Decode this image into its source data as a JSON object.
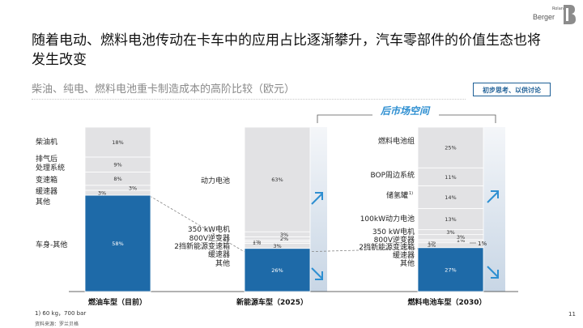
{
  "header": {
    "title": "随着电动、燃料电池传动在卡车中的应用占比逐渐攀升，汽车零部件的价值生态也将发生改变",
    "subtitle": "柴油、纯电、燃料电池重卡制造成本的高阶比较（欧元）",
    "badge": "初步思考、以供讨论",
    "logo_roland": "Roland",
    "logo_berger": "Berger"
  },
  "aftermarket_label": "后市场空间",
  "footer": {
    "footnote": "1) 60 kg，700 bar",
    "source": "资料来源：罗兰贝格"
  },
  "page_number": "11",
  "colors": {
    "highlight": "#1e6aa8",
    "segment": "#e2e2e4",
    "accent": "#2e8fd1",
    "arrow_panel_top": "#f4f6f9",
    "arrow_panel_bottom": "#c8d6e5"
  },
  "chart_data": {
    "type": "bar",
    "stacked": true,
    "categories": [
      "燃油车型（目前）",
      "新能源车型（2025）",
      "燃料电池车型（2030）"
    ],
    "bars": [
      {
        "category": "燃油车型（目前）",
        "segments": [
          {
            "label": "车身-其他",
            "value": 58,
            "display": "58%",
            "highlight": true
          },
          {
            "label": "其他",
            "value": 3,
            "display": "3%"
          },
          {
            "label": "缓速器",
            "value": 3,
            "display": "3%"
          },
          {
            "label": "变速箱",
            "value": 8,
            "display": "8%"
          },
          {
            "label": "排气后处理系统",
            "value": 9,
            "display": "9%"
          },
          {
            "label": "柴油机",
            "value": 18,
            "display": "18%"
          }
        ]
      },
      {
        "category": "新能源车型（2025）",
        "segments": [
          {
            "label": "其他",
            "value": 26,
            "display": "26%",
            "highlight": true
          },
          {
            "label": "缓速器",
            "value": 3,
            "display": "3%"
          },
          {
            "label": "2挡新能源变速箱",
            "value": 1,
            "display": "1%"
          },
          {
            "label": "800V逆变器",
            "value": 1,
            "display": "1%"
          },
          {
            "label": "800V逆变器",
            "value": 2,
            "display": "2%"
          },
          {
            "label": "350 kW电机",
            "value": 3,
            "display": "3%"
          },
          {
            "label": "动力电池",
            "value": 63,
            "display": "63%"
          }
        ]
      },
      {
        "category": "燃料电池车型（2030）",
        "segments": [
          {
            "label": "其他",
            "value": 27,
            "display": "27%",
            "highlight": true
          },
          {
            "label": "缓速器",
            "value": 3,
            "display": "3%"
          },
          {
            "label": "2挡新能源变速箱",
            "value": 1,
            "display": "1%"
          },
          {
            "label": "800V逆变器",
            "value": 1,
            "display": "1%"
          },
          {
            "label": "800V逆变器",
            "value": 3,
            "display": "3%"
          },
          {
            "label": "350 kW电机",
            "value": 3,
            "display": "3%"
          },
          {
            "label": "100kW动力电池",
            "value": 13,
            "display": "13%"
          },
          {
            "label": "储氢罐¹⁾",
            "value": 14,
            "display": "14%"
          },
          {
            "label": "BOP周边系统",
            "value": 11,
            "display": "11%"
          },
          {
            "label": "燃料电池组",
            "value": 25,
            "display": "25%"
          }
        ]
      }
    ],
    "left_labels": {
      "bar1": [
        "柴油机",
        "排气后",
        "处理系统",
        "变速箱",
        "缓速器",
        "其他",
        "车身-其他"
      ],
      "bar2": [
        "动力电池",
        "350 kW电机",
        "800V逆变器",
        "2挡新能源变速箱",
        "缓速器",
        "其他"
      ],
      "bar3": [
        "燃料电池组",
        "BOP周边系统",
        "储氢罐",
        "1)",
        "100kW动力电池",
        "350 kW电机",
        "800V逆变器",
        "2挡新能源变速箱",
        "缓速器",
        "其他"
      ]
    },
    "side_label_bar3": "1%"
  }
}
